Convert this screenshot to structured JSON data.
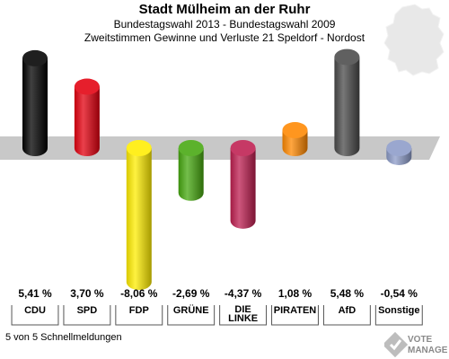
{
  "header": {
    "title": "Stadt Mülheim an der Ruhr",
    "subtitle1": "Bundestagswahl 2013 - Bundestagswahl 2009",
    "subtitle2": "Zweitstimmen Gewinne und Verluste 21 Speldorf - Nordost"
  },
  "footer": {
    "status": "5 von 5 Schnellmeldungen"
  },
  "logo": {
    "line1": "VOTE",
    "line2": "MANAGER"
  },
  "chart_data": {
    "type": "bar",
    "categories": [
      "CDU",
      "SPD",
      "FDP",
      "GRÜNE",
      "DIE LINKE",
      "PIRATEN",
      "AfD",
      "Sonstige"
    ],
    "category_lines": [
      [
        "CDU"
      ],
      [
        "SPD"
      ],
      [
        "FDP"
      ],
      [
        "GRÜNE"
      ],
      [
        "DIE",
        "LINKE"
      ],
      [
        "PIRATEN"
      ],
      [
        "AfD"
      ],
      [
        "Sonstige"
      ]
    ],
    "values": [
      5.41,
      3.7,
      -8.06,
      -2.69,
      -4.37,
      1.08,
      5.48,
      -0.54
    ],
    "value_labels": [
      "5,41 %",
      "3,70 %",
      "-8,06 %",
      "-2,69 %",
      "-4,37 %",
      "1,08 %",
      "5,48 %",
      "-0,54 %"
    ],
    "colors": [
      "#000000",
      "#e3000f",
      "#ffed00",
      "#46a80f",
      "#be1e50",
      "#ff8800",
      "#4a4a4a",
      "#8c9bc8"
    ],
    "unit": "%",
    "ylim": [
      -9,
      6
    ]
  }
}
